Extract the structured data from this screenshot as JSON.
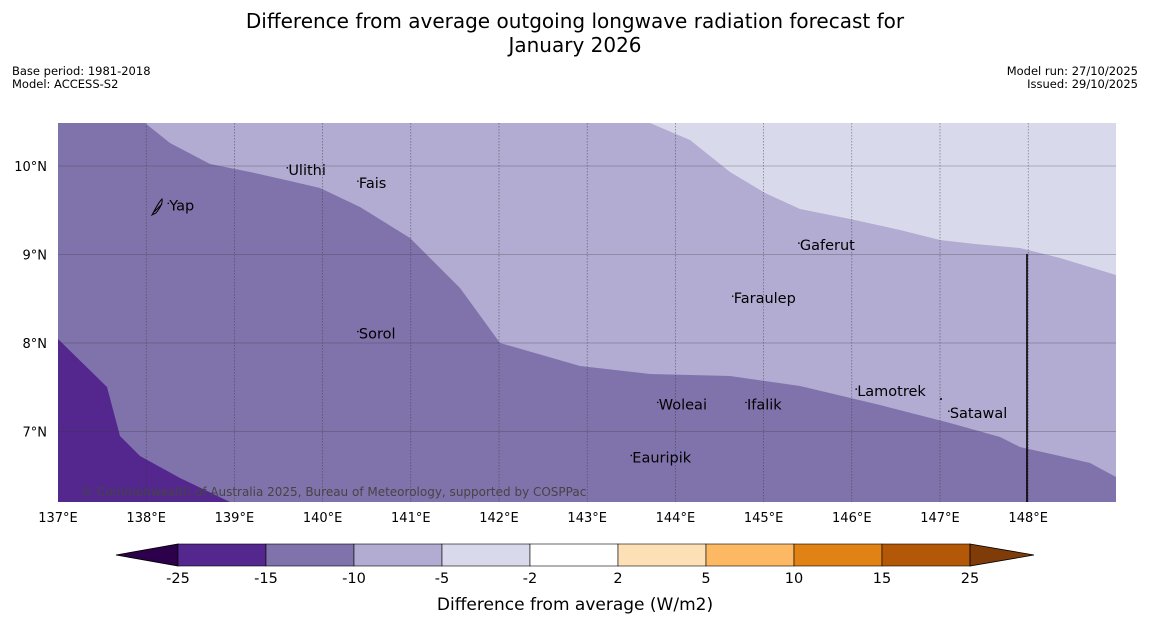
{
  "title_line1": "Difference from average outgoing longwave radiation forecast for",
  "title_line2": "January 2026",
  "base_period": "Base period: 1981-2018",
  "model": "Model: ACCESS-S2",
  "model_run": "Model run: 27/10/2025",
  "issued": "Issued: 29/10/2025",
  "copyright": "© Commonwealth of Australia 2025, Bureau of Meteorology, supported by COSPPac",
  "map": {
    "lon_range": [
      137,
      149
    ],
    "lat_range": [
      6.2,
      10.5
    ],
    "lon_ticks": [
      {
        "value": 137,
        "label": "137°E"
      },
      {
        "value": 138,
        "label": "138°E"
      },
      {
        "value": 139,
        "label": "139°E"
      },
      {
        "value": 140,
        "label": "140°E"
      },
      {
        "value": 141,
        "label": "141°E"
      },
      {
        "value": 142,
        "label": "142°E"
      },
      {
        "value": 143,
        "label": "143°E"
      },
      {
        "value": 144,
        "label": "144°E"
      },
      {
        "value": 145,
        "label": "145°E"
      },
      {
        "value": 146,
        "label": "146°E"
      },
      {
        "value": 147,
        "label": "147°E"
      },
      {
        "value": 148,
        "label": "148°E"
      }
    ],
    "lat_ticks": [
      {
        "value": 10,
        "label": "10°N"
      },
      {
        "value": 9,
        "label": "9°N"
      },
      {
        "value": 8,
        "label": "8°N"
      },
      {
        "value": 7,
        "label": "7°N"
      }
    ],
    "places": [
      {
        "name": "Yap",
        "lon": 138.25,
        "lat": 9.5
      },
      {
        "name": "Ulithi",
        "lon": 139.6,
        "lat": 9.9
      },
      {
        "name": "Fais",
        "lon": 140.4,
        "lat": 9.75
      },
      {
        "name": "Gaferut",
        "lon": 145.4,
        "lat": 9.05
      },
      {
        "name": "Faraulep",
        "lon": 144.65,
        "lat": 8.45
      },
      {
        "name": "Sorol",
        "lon": 140.4,
        "lat": 8.05
      },
      {
        "name": "Lamotrek",
        "lon": 146.05,
        "lat": 7.4
      },
      {
        "name": "Woleai",
        "lon": 143.8,
        "lat": 7.25
      },
      {
        "name": "Ifalik",
        "lon": 144.8,
        "lat": 7.25
      },
      {
        "name": "Satawal",
        "lon": 147.1,
        "lat": 7.15
      },
      {
        "name": "Eauripik",
        "lon": 143.5,
        "lat": 6.65
      }
    ],
    "colors": {
      "band_lt_neg25_fill": "#3f007d",
      "band_neg25_neg15": "#54278f",
      "band_neg15_neg10": "#8073ac",
      "band_neg10_neg5": "#b2abd2",
      "band_neg5_neg2": "#d8daeb",
      "band_neg2_2": "#ffffff",
      "band_2_5": "#fee0b6",
      "band_5_10": "#fdb863",
      "band_10_15": "#e08214",
      "band_15_25": "#b35806",
      "band_gt25": "#7f3b08"
    }
  },
  "colorbar": {
    "label": "Difference from average (W/m2)",
    "ticks": [
      "-25",
      "-15",
      "-10",
      "-5",
      "-2",
      "2",
      "5",
      "10",
      "15",
      "25"
    ],
    "colors": [
      "#54278f",
      "#8073ac",
      "#b2abd2",
      "#d8daeb",
      "#ffffff",
      "#fee0b6",
      "#fdb863",
      "#e08214",
      "#b35806"
    ],
    "under_color": "#2d004b",
    "over_color": "#7f3b08"
  }
}
